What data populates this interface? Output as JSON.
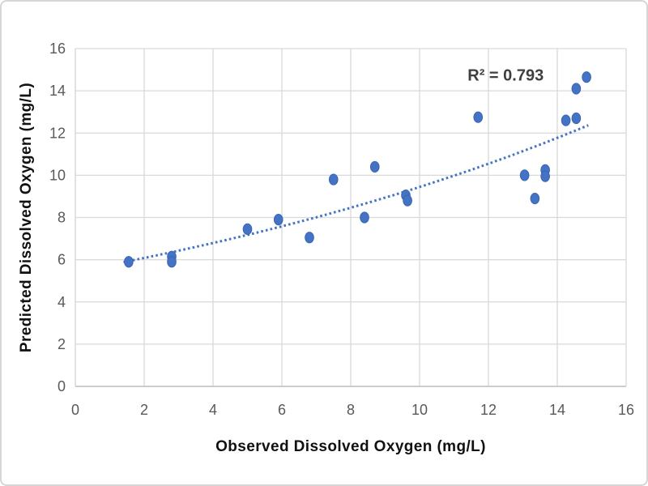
{
  "chart_data": {
    "type": "scatter",
    "title": "",
    "xlabel": "Observed Dissolved Oxygen (mg/L)",
    "ylabel": "Predicted Dissolved Oxygen  (mg/L)",
    "xlim": [
      0,
      16
    ],
    "ylim": [
      0,
      16
    ],
    "xticks": [
      0,
      2,
      4,
      6,
      8,
      10,
      12,
      14,
      16
    ],
    "yticks": [
      0,
      2,
      4,
      6,
      8,
      10,
      12,
      14,
      16
    ],
    "grid": true,
    "legend": "none",
    "annotation": {
      "text": "R² = 0.793",
      "x": 12.5,
      "y": 14.75
    },
    "points": [
      [
        1.55,
        5.9
      ],
      [
        2.8,
        6.15
      ],
      [
        2.8,
        5.9
      ],
      [
        5.0,
        7.45
      ],
      [
        5.9,
        7.9
      ],
      [
        6.8,
        7.05
      ],
      [
        7.5,
        9.8
      ],
      [
        8.4,
        8.0
      ],
      [
        8.7,
        10.4
      ],
      [
        9.6,
        9.05
      ],
      [
        9.65,
        8.8
      ],
      [
        11.7,
        12.75
      ],
      [
        13.05,
        10.0
      ],
      [
        13.35,
        8.9
      ],
      [
        13.65,
        10.25
      ],
      [
        13.65,
        9.95
      ],
      [
        14.25,
        12.6
      ],
      [
        14.55,
        12.7
      ],
      [
        14.55,
        14.1
      ],
      [
        14.85,
        14.65
      ]
    ],
    "trendline": {
      "type": "exponential",
      "equation": "y = 5.45 * exp(0.055x)",
      "a": 5.45,
      "b": 0.055,
      "x_start": 1.4,
      "x_end": 14.9,
      "style": "dotted"
    },
    "colors": {
      "marker": "#4472C4",
      "marker_edge": "#3a66b0",
      "trendline": "#4472C4",
      "gridline": "#d9d9d9",
      "axis_line": "#bfbfbf",
      "tick_text": "#595959",
      "axis_title_text": "#111111",
      "annotation_text": "#3f3f3f",
      "background": "#ffffff"
    }
  }
}
